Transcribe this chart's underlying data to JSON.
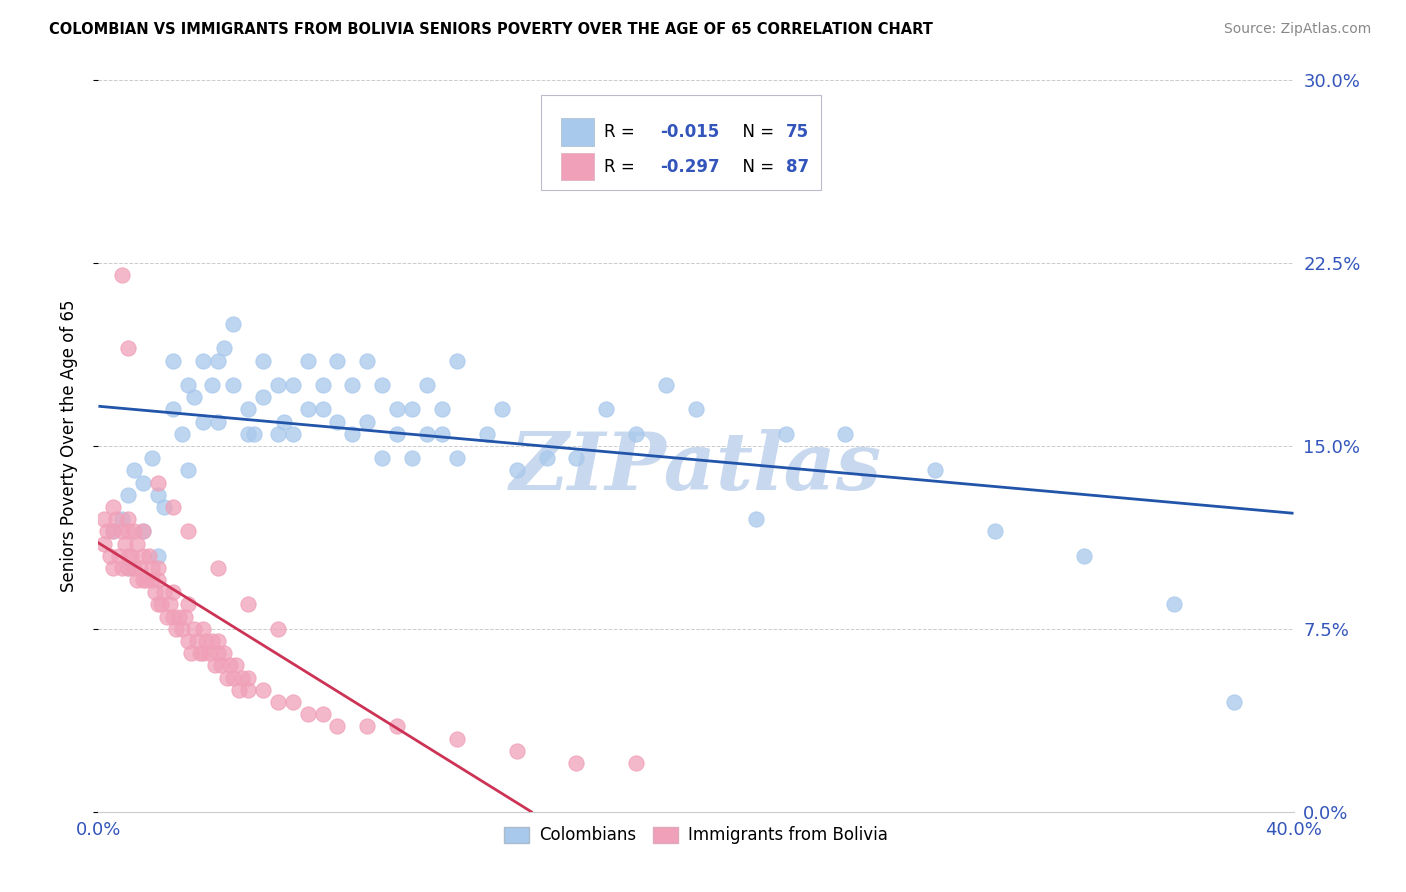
{
  "title": "COLOMBIAN VS IMMIGRANTS FROM BOLIVIA SENIORS POVERTY OVER THE AGE OF 65 CORRELATION CHART",
  "source": "Source: ZipAtlas.com",
  "ylabel": "Seniors Poverty Over the Age of 65",
  "xlim": [
    0.0,
    0.4
  ],
  "ylim": [
    0.0,
    0.3
  ],
  "yticks": [
    0.0,
    0.075,
    0.15,
    0.225,
    0.3
  ],
  "ytick_labels": [
    "0.0%",
    "7.5%",
    "15.0%",
    "22.5%",
    "30.0%"
  ],
  "xticks": [
    0.0,
    0.05,
    0.1,
    0.15,
    0.2,
    0.25,
    0.3,
    0.35,
    0.4
  ],
  "xtick_labels": [
    "0.0%",
    "",
    "",
    "",
    "",
    "",
    "",
    "",
    "40.0%"
  ],
  "color_colombian": "#A8C8EC",
  "color_bolivia": "#F0A0B8",
  "trendline_colombian": "#2255AA",
  "trendline_bolivia": "#CC3355",
  "watermark": "ZIPatlas",
  "watermark_color": "#C8D8EE",
  "colombian_x": [
    0.005,
    0.008,
    0.01,
    0.01,
    0.012,
    0.015,
    0.015,
    0.018,
    0.02,
    0.02,
    0.022,
    0.025,
    0.025,
    0.028,
    0.03,
    0.03,
    0.032,
    0.035,
    0.035,
    0.038,
    0.04,
    0.04,
    0.042,
    0.045,
    0.045,
    0.05,
    0.05,
    0.052,
    0.055,
    0.055,
    0.06,
    0.06,
    0.062,
    0.065,
    0.065,
    0.07,
    0.07,
    0.075,
    0.075,
    0.08,
    0.08,
    0.085,
    0.085,
    0.09,
    0.09,
    0.095,
    0.095,
    0.1,
    0.1,
    0.105,
    0.105,
    0.11,
    0.11,
    0.115,
    0.115,
    0.12,
    0.12,
    0.13,
    0.135,
    0.14,
    0.15,
    0.16,
    0.17,
    0.18,
    0.19,
    0.2,
    0.22,
    0.23,
    0.25,
    0.28,
    0.3,
    0.33,
    0.36,
    0.38,
    0.16
  ],
  "colombian_y": [
    0.115,
    0.12,
    0.1,
    0.13,
    0.14,
    0.135,
    0.115,
    0.145,
    0.13,
    0.105,
    0.125,
    0.165,
    0.185,
    0.155,
    0.14,
    0.175,
    0.17,
    0.185,
    0.16,
    0.175,
    0.16,
    0.185,
    0.19,
    0.2,
    0.175,
    0.155,
    0.165,
    0.155,
    0.185,
    0.17,
    0.155,
    0.175,
    0.16,
    0.175,
    0.155,
    0.165,
    0.185,
    0.165,
    0.175,
    0.16,
    0.185,
    0.175,
    0.155,
    0.16,
    0.185,
    0.175,
    0.145,
    0.165,
    0.155,
    0.145,
    0.165,
    0.155,
    0.175,
    0.165,
    0.155,
    0.185,
    0.145,
    0.155,
    0.165,
    0.14,
    0.145,
    0.145,
    0.165,
    0.155,
    0.175,
    0.165,
    0.12,
    0.155,
    0.155,
    0.14,
    0.115,
    0.105,
    0.085,
    0.045,
    0.275
  ],
  "bolivian_x": [
    0.002,
    0.002,
    0.003,
    0.004,
    0.005,
    0.005,
    0.005,
    0.006,
    0.007,
    0.008,
    0.008,
    0.009,
    0.01,
    0.01,
    0.01,
    0.01,
    0.011,
    0.012,
    0.012,
    0.013,
    0.013,
    0.014,
    0.015,
    0.015,
    0.015,
    0.016,
    0.017,
    0.018,
    0.018,
    0.019,
    0.02,
    0.02,
    0.02,
    0.021,
    0.022,
    0.023,
    0.024,
    0.025,
    0.025,
    0.026,
    0.027,
    0.028,
    0.029,
    0.03,
    0.03,
    0.031,
    0.032,
    0.033,
    0.034,
    0.035,
    0.035,
    0.036,
    0.037,
    0.038,
    0.039,
    0.04,
    0.04,
    0.041,
    0.042,
    0.043,
    0.044,
    0.045,
    0.046,
    0.047,
    0.048,
    0.05,
    0.05,
    0.055,
    0.06,
    0.065,
    0.07,
    0.075,
    0.08,
    0.09,
    0.1,
    0.12,
    0.14,
    0.16,
    0.18,
    0.02,
    0.025,
    0.03,
    0.04,
    0.05,
    0.06,
    0.008,
    0.01
  ],
  "bolivian_y": [
    0.12,
    0.11,
    0.115,
    0.105,
    0.115,
    0.125,
    0.1,
    0.12,
    0.105,
    0.115,
    0.1,
    0.11,
    0.105,
    0.115,
    0.1,
    0.12,
    0.105,
    0.1,
    0.115,
    0.095,
    0.11,
    0.1,
    0.095,
    0.105,
    0.115,
    0.095,
    0.105,
    0.095,
    0.1,
    0.09,
    0.095,
    0.085,
    0.1,
    0.085,
    0.09,
    0.08,
    0.085,
    0.08,
    0.09,
    0.075,
    0.08,
    0.075,
    0.08,
    0.07,
    0.085,
    0.065,
    0.075,
    0.07,
    0.065,
    0.075,
    0.065,
    0.07,
    0.065,
    0.07,
    0.06,
    0.065,
    0.07,
    0.06,
    0.065,
    0.055,
    0.06,
    0.055,
    0.06,
    0.05,
    0.055,
    0.05,
    0.055,
    0.05,
    0.045,
    0.045,
    0.04,
    0.04,
    0.035,
    0.035,
    0.035,
    0.03,
    0.025,
    0.02,
    0.02,
    0.135,
    0.125,
    0.115,
    0.1,
    0.085,
    0.075,
    0.22,
    0.19
  ]
}
